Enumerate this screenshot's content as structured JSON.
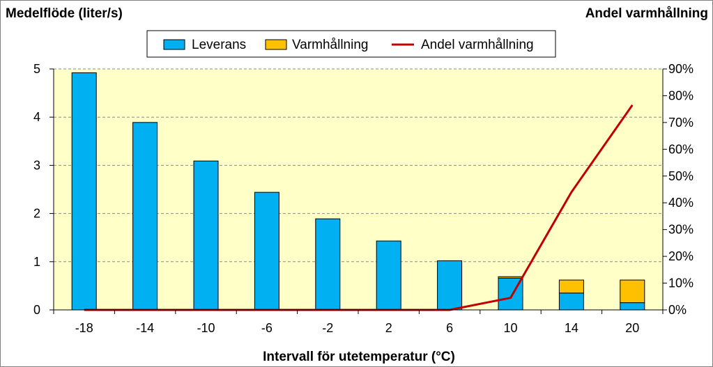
{
  "chart_data": {
    "type": "bar",
    "stacked": true,
    "title": "",
    "xlabel": "Intervall för utetemperatur (°C)",
    "ylabel": "Medelflöde (liter/s)",
    "y2label": "Andel varmhållning",
    "categories": [
      "-18",
      "-14",
      "-10",
      "-6",
      "-2",
      "2",
      "6",
      "10",
      "14",
      "20"
    ],
    "ylim": [
      0,
      5
    ],
    "yticks": [
      "0",
      "1",
      "2",
      "3",
      "4",
      "5"
    ],
    "y2lim": [
      0,
      0.9
    ],
    "y2ticks": [
      "0%",
      "10%",
      "20%",
      "30%",
      "40%",
      "50%",
      "60%",
      "70%",
      "80%",
      "90%"
    ],
    "series": [
      {
        "name": "Leverans",
        "type": "bar",
        "axis": "left",
        "color": "#00b0f0",
        "values": [
          4.92,
          3.89,
          3.09,
          2.44,
          1.89,
          1.43,
          1.02,
          0.66,
          0.35,
          0.15
        ]
      },
      {
        "name": "Varmhållning",
        "type": "bar",
        "axis": "left",
        "color": "#ffc000",
        "values": [
          0,
          0,
          0,
          0,
          0,
          0,
          0,
          0.03,
          0.27,
          0.47
        ]
      },
      {
        "name": "Andel varmhållning",
        "type": "line",
        "axis": "right",
        "color": "#c00000",
        "values": [
          0,
          0,
          0,
          0,
          0,
          0,
          0,
          0.045,
          0.44,
          0.765
        ]
      }
    ],
    "grid": true,
    "legend_position": "top-center",
    "plot_background": "#ffffc8"
  }
}
